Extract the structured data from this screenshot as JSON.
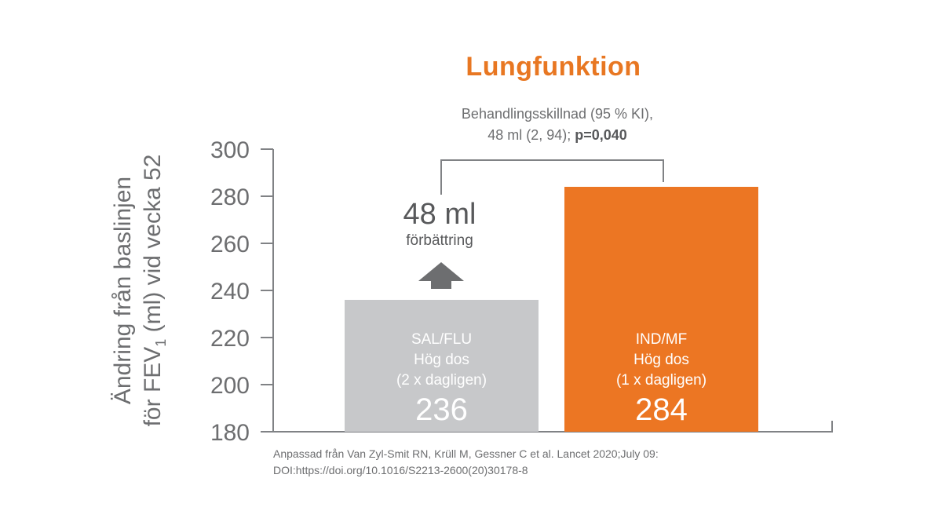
{
  "chart_data": {
    "type": "bar",
    "title": "Lungfunktion",
    "ylabel_line1": "Ändring från baslinjen",
    "ylabel_line2_pre": "för FEV",
    "ylabel_line2_sub": "1",
    "ylabel_line2_post": " (ml) vid vecka  52",
    "ylim": [
      180,
      300
    ],
    "yticks": [
      180,
      200,
      220,
      240,
      260,
      280,
      300
    ],
    "categories": [
      "SAL/FLU",
      "IND/MF"
    ],
    "bars": [
      {
        "name": "SAL/FLU",
        "line2": "Hög dos",
        "line3": "(2 x dagligen)",
        "value": 236,
        "value_label": "236",
        "color": "#c7c8ca"
      },
      {
        "name": "IND/MF",
        "line2": "Hög dos",
        "line3": "(1 x dagligen)",
        "value": 284,
        "value_label": "284",
        "color": "#ec7623"
      }
    ],
    "annotation": {
      "line1": "Behandlingsskillnad (95 % KI),",
      "line2": "48 ml (2, 94); ",
      "pvalue": "p=0,040"
    },
    "improvement": {
      "value": "48 ml",
      "label": "förbättring"
    },
    "grid": false
  },
  "source": {
    "line1": "Anpassad från Van Zyl-Smit RN, Krüll M, Gessner C et al. Lancet 2020;July 09:",
    "line2": "DOI:https://doi.org/10.1016/S2213-2600(20)30178-8"
  },
  "colors": {
    "accent": "#e87722",
    "axis": "#808285",
    "text": "#6d6e70",
    "arrow": "#6d6e70"
  }
}
